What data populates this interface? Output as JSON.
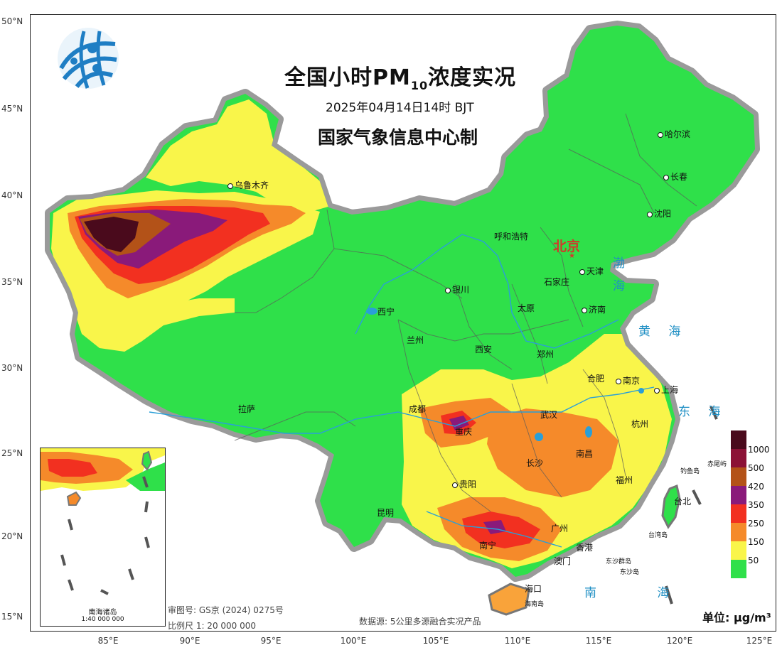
{
  "title": {
    "main": "全国小时PM",
    "sub": "10",
    "suffix": "浓度实况"
  },
  "datetime": "2025年04月14日14时 BJT",
  "issuer": "国家气象信息中心制",
  "latitude_labels": [
    "50°N",
    "45°N",
    "40°N",
    "35°N",
    "30°N",
    "25°N",
    "20°N",
    "15°N"
  ],
  "longitude_labels": [
    "85°E",
    "90°E",
    "95°E",
    "100°E",
    "105°E",
    "110°E",
    "115°E",
    "120°E",
    "125°E"
  ],
  "capital": "北京",
  "cities": [
    "哈尔滨",
    "长春",
    "沈阳",
    "乌鲁木齐",
    "呼和浩特",
    "天津",
    "石家庄",
    "银川",
    "太原",
    "济南",
    "西宁",
    "兰州",
    "郑州",
    "西安",
    "合肥",
    "南京",
    "上海",
    "拉萨",
    "成都",
    "武汉",
    "杭州",
    "重庆",
    "长沙",
    "南昌",
    "福州",
    "贵阳",
    "台北",
    "昆明",
    "广州",
    "南宁",
    "香港",
    "澳门",
    "海口"
  ],
  "small_labels": [
    "钓鱼岛",
    "赤尾屿",
    "台湾岛",
    "东沙群岛",
    "东沙岛",
    "海南岛"
  ],
  "seas": {
    "bohai": "渤",
    "bohai2": "海",
    "yellow": "黄 海",
    "east": "东 海",
    "south": "南 海"
  },
  "legend": {
    "values": [
      "1000",
      "500",
      "420",
      "350",
      "250",
      "150",
      "50"
    ],
    "colors": [
      "#4a0a1c",
      "#8c1236",
      "#b35218",
      "#8a1a7a",
      "#f23020",
      "#f58a2a",
      "#f9f54a",
      "#2fe04a"
    ]
  },
  "unit": "单位: μg/m³",
  "source": "数据源: 5公里多源融合实况产品",
  "review_number": "审图号: GS京 (2024) 0275号",
  "scale": "比例尺 1: 20 000 000",
  "inset": {
    "title": "南海诸岛",
    "scale": "1:40 000 000"
  },
  "colors": {
    "ocean": "#ffffff",
    "border": "#777777",
    "river": "#2a9fd8"
  }
}
